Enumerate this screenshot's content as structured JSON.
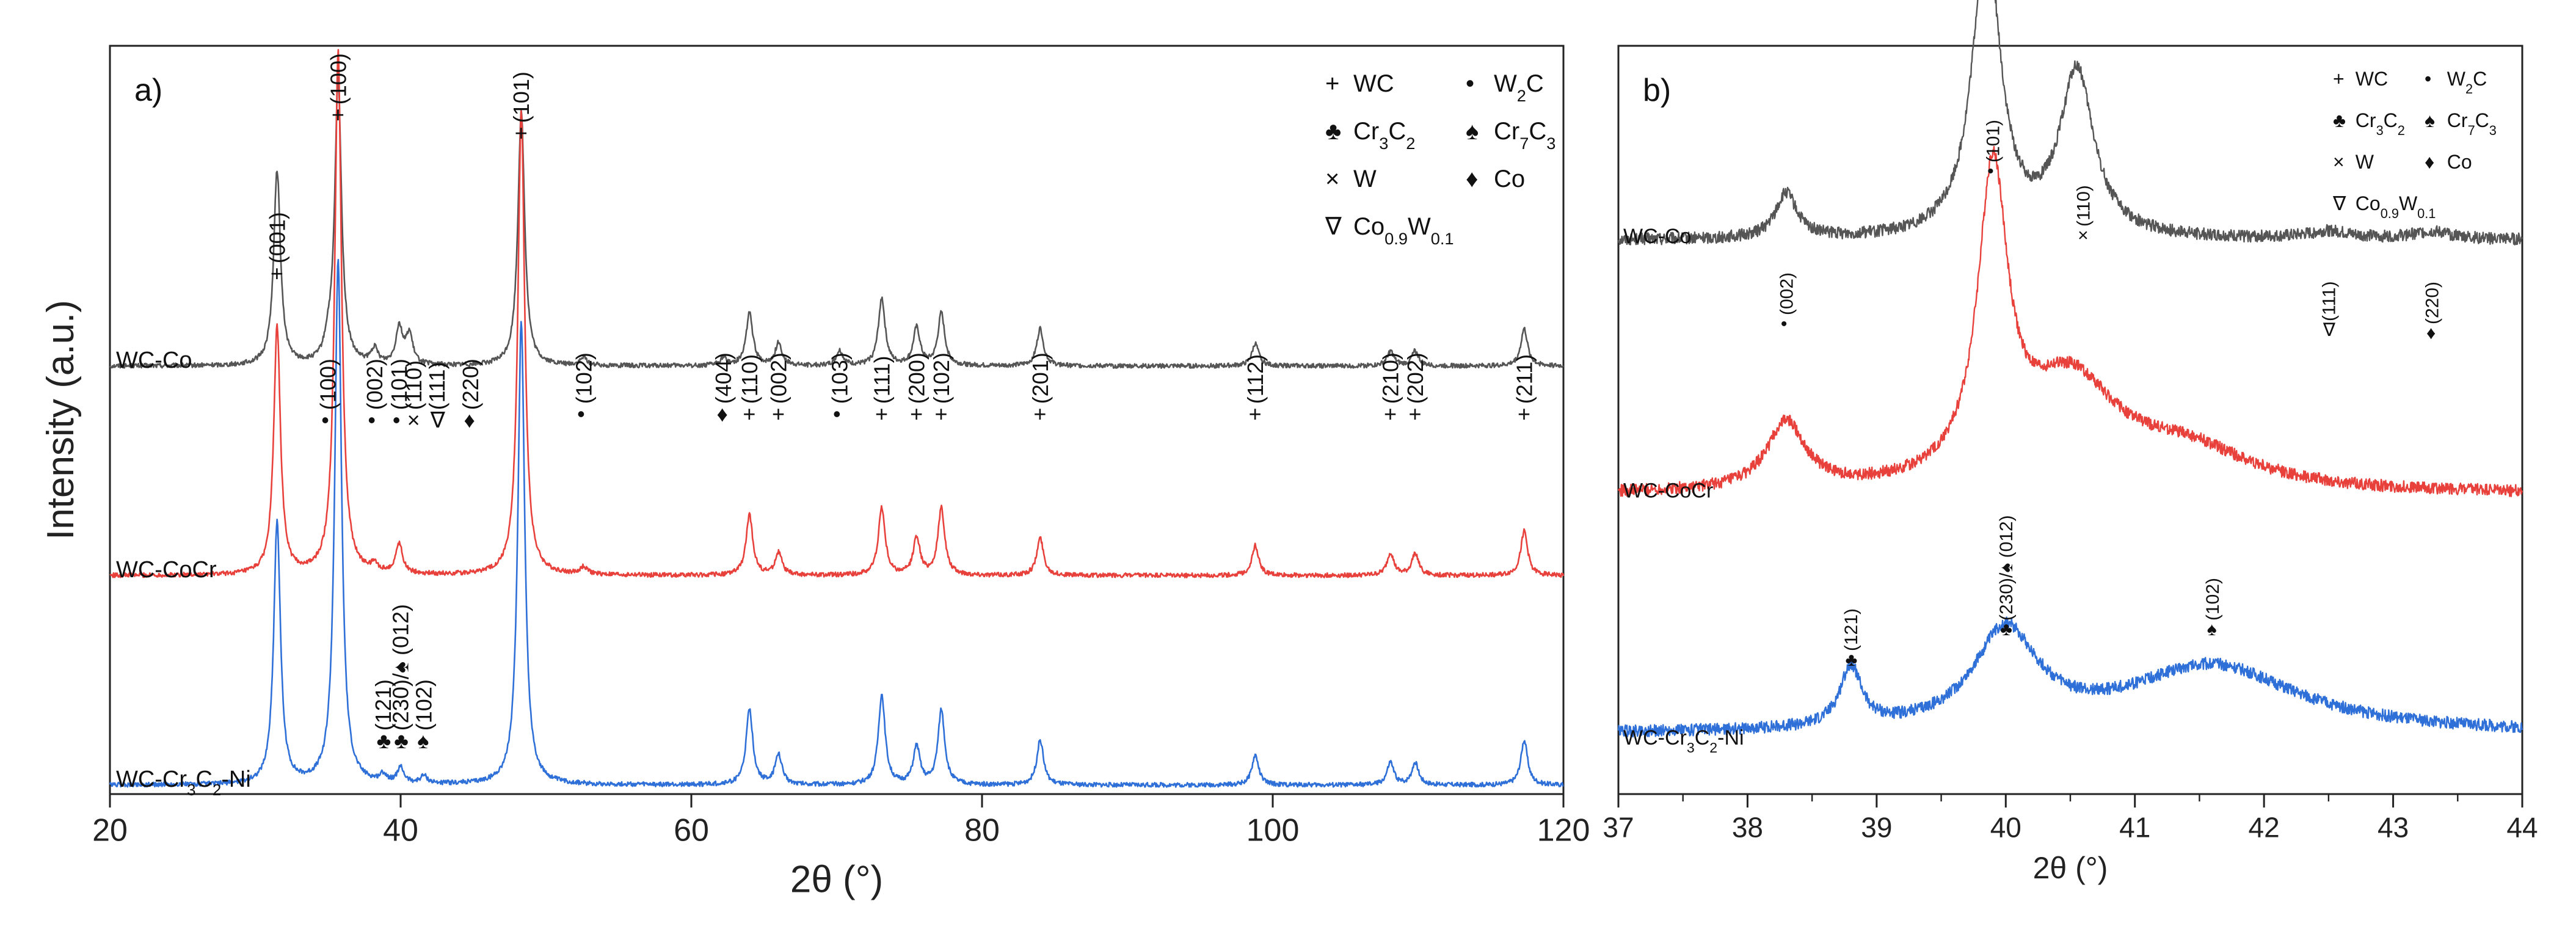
{
  "chart_data": [
    {
      "type": "line",
      "panel_label": "a)",
      "xlabel": "2θ (°)",
      "ylabel": "Intensity (a.u.)",
      "xlim": [
        20,
        120
      ],
      "xticks": [
        "20",
        "40",
        "60",
        "80",
        "100",
        "120"
      ],
      "series": [
        {
          "name": "WC-Co",
          "color": "#555555",
          "offset": 0.7,
          "peaks": [
            [
              31.5,
              0.26
            ],
            [
              35.0,
              0.02
            ],
            [
              35.7,
              0.38
            ],
            [
              38.2,
              0.02
            ],
            [
              39.9,
              0.05
            ],
            [
              40.6,
              0.04
            ],
            [
              48.3,
              0.34
            ],
            [
              52.6,
              0.01
            ],
            [
              62.2,
              0.01
            ],
            [
              64.0,
              0.07
            ],
            [
              66.0,
              0.03
            ],
            [
              70.2,
              0.02
            ],
            [
              73.1,
              0.09
            ],
            [
              75.5,
              0.05
            ],
            [
              77.2,
              0.07
            ],
            [
              84.0,
              0.05
            ],
            [
              98.8,
              0.03
            ],
            [
              108.1,
              0.02
            ],
            [
              109.8,
              0.02
            ],
            [
              117.3,
              0.05
            ]
          ]
        },
        {
          "name": "WC-CoCr",
          "color": "#e8413c",
          "offset": 0.35,
          "peaks": [
            [
              31.5,
              0.33
            ],
            [
              35.7,
              0.7
            ],
            [
              38.2,
              0.01
            ],
            [
              39.9,
              0.04
            ],
            [
              48.3,
              0.62
            ],
            [
              52.6,
              0.01
            ],
            [
              64.0,
              0.08
            ],
            [
              66.0,
              0.03
            ],
            [
              73.1,
              0.09
            ],
            [
              75.5,
              0.05
            ],
            [
              77.2,
              0.09
            ],
            [
              84.0,
              0.05
            ],
            [
              98.8,
              0.04
            ],
            [
              108.1,
              0.03
            ],
            [
              109.8,
              0.03
            ],
            [
              117.3,
              0.06
            ]
          ]
        },
        {
          "name": "WC-Cr3C2-Ni",
          "color": "#2e6fd8",
          "offset": 0.0,
          "peaks": [
            [
              31.5,
              0.35
            ],
            [
              35.7,
              0.7
            ],
            [
              38.8,
              0.01
            ],
            [
              40.0,
              0.02
            ],
            [
              41.6,
              0.01
            ],
            [
              48.3,
              0.62
            ],
            [
              64.0,
              0.1
            ],
            [
              66.0,
              0.04
            ],
            [
              73.1,
              0.12
            ],
            [
              75.5,
              0.05
            ],
            [
              77.2,
              0.1
            ],
            [
              84.0,
              0.06
            ],
            [
              98.8,
              0.04
            ],
            [
              108.1,
              0.03
            ],
            [
              109.8,
              0.03
            ],
            [
              117.3,
              0.06
            ]
          ]
        }
      ],
      "series_labels": [
        {
          "name": "WC-Co",
          "main": "WC-Co",
          "sub": ""
        },
        {
          "name": "WC-CoCr",
          "main": "WC-CoCr",
          "sub": ""
        },
        {
          "name": "WC-Cr3C2-Ni",
          "main": "WC-Cr",
          "sub": "3",
          "main2": "C",
          "sub2": "2",
          "tail": "-Ni"
        }
      ],
      "legend": [
        {
          "symbol": "+",
          "text": "WC",
          "sub": ""
        },
        {
          "symbol": "•",
          "text": "W",
          "sub": "2",
          "tail": "C"
        },
        {
          "symbol": "♣",
          "text": "Cr",
          "sub": "3",
          "tail": "C",
          "sub2": "2"
        },
        {
          "symbol": "♠",
          "text": "Cr",
          "sub": "7",
          "tail": "C",
          "sub2": "3"
        },
        {
          "symbol": "×",
          "text": "W",
          "sub": ""
        },
        {
          "symbol": "♦",
          "text": "Co",
          "sub": ""
        },
        {
          "symbol": "∇",
          "text": "Co",
          "sub": "0.9",
          "tail": "W",
          "sub2": "0.1"
        }
      ],
      "annotations_top": [
        {
          "x": 31.5,
          "sym": "+",
          "hkl": "(001)"
        },
        {
          "x": 35.0,
          "sym": "•",
          "hkl": "(100)"
        },
        {
          "x": 35.7,
          "sym": "+",
          "hkl": "(100)"
        },
        {
          "x": 38.2,
          "sym": "•",
          "hkl": "(002)"
        },
        {
          "x": 39.9,
          "sym": "•",
          "hkl": "(101)"
        },
        {
          "x": 40.9,
          "sym": "×",
          "hkl": "(110)"
        },
        {
          "x": 42.5,
          "sym": "∇",
          "hkl": "(111)"
        },
        {
          "x": 44.8,
          "sym": "♦",
          "hkl": "(220)"
        },
        {
          "x": 48.3,
          "sym": "+",
          "hkl": "(101)"
        },
        {
          "x": 52.6,
          "sym": "•",
          "hkl": "(102)"
        },
        {
          "x": 62.2,
          "sym": "♦",
          "hkl": "(404)"
        },
        {
          "x": 64.0,
          "sym": "+",
          "hkl": "(110)"
        },
        {
          "x": 66.0,
          "sym": "+",
          "hkl": "(002)"
        },
        {
          "x": 70.2,
          "sym": "•",
          "hkl": "(103)"
        },
        {
          "x": 73.1,
          "sym": "+",
          "hkl": "(111)"
        },
        {
          "x": 75.5,
          "sym": "+",
          "hkl": "(200)"
        },
        {
          "x": 77.2,
          "sym": "+",
          "hkl": "(102)"
        },
        {
          "x": 84.0,
          "sym": "+",
          "hkl": "(201)"
        },
        {
          "x": 98.8,
          "sym": "+",
          "hkl": "(112)"
        },
        {
          "x": 108.1,
          "sym": "+",
          "hkl": "(210)"
        },
        {
          "x": 109.8,
          "sym": "+",
          "hkl": "(202)"
        },
        {
          "x": 117.3,
          "sym": "+",
          "hkl": "(211)"
        }
      ],
      "annotations_bottom": [
        {
          "x": 38.8,
          "sym": "♣",
          "hkl": "(121)"
        },
        {
          "x": 40.0,
          "sym": "♣",
          "hkl": "(230)/♠ (012)"
        },
        {
          "x": 41.6,
          "sym": "♠",
          "hkl": "(102)"
        }
      ]
    },
    {
      "type": "line",
      "panel_label": "b)",
      "xlabel": "2θ (°)",
      "xlim": [
        37,
        44
      ],
      "xticks": [
        "37",
        "38",
        "39",
        "40",
        "41",
        "42",
        "43",
        "44"
      ],
      "series": [
        {
          "name": "WC-Co",
          "color": "#555555",
          "offset": 0.72,
          "baseline": 0.02,
          "peaks": [
            [
              38.3,
              0.06,
              0.1
            ],
            [
              39.85,
              0.4,
              0.13
            ],
            [
              40.55,
              0.22,
              0.16
            ],
            [
              42.5,
              0.01,
              0.2
            ],
            [
              43.3,
              0.01,
              0.2
            ]
          ]
        },
        {
          "name": "WC-CoCr",
          "color": "#e8413c",
          "offset": 0.38,
          "baseline": 0.02,
          "peaks": [
            [
              38.3,
              0.09,
              0.18
            ],
            [
              39.9,
              0.4,
              0.14
            ],
            [
              40.5,
              0.14,
              0.45
            ],
            [
              41.4,
              0.05,
              0.6
            ]
          ]
        },
        {
          "name": "WC-Cr3C2-Ni",
          "color": "#2e6fd8",
          "offset": 0.05,
          "baseline": 0.03,
          "peaks": [
            [
              38.8,
              0.08,
              0.1
            ],
            [
              40.0,
              0.13,
              0.3
            ],
            [
              41.6,
              0.09,
              0.8
            ]
          ]
        }
      ],
      "series_labels": [
        {
          "name": "WC-Co",
          "main": "WC-Co",
          "sub": ""
        },
        {
          "name": "WC-CoCr",
          "main": "WC-CoCr",
          "sub": ""
        },
        {
          "name": "WC-Cr3C2-Ni",
          "main": "WC-Cr",
          "sub": "3",
          "main2": "C",
          "sub2": "2",
          "tail": "-Ni"
        }
      ],
      "legend": [
        {
          "symbol": "+",
          "text": "WC",
          "sub": ""
        },
        {
          "symbol": "•",
          "text": "W",
          "sub": "2",
          "tail": "C"
        },
        {
          "symbol": "♣",
          "text": "Cr",
          "sub": "3",
          "tail": "C",
          "sub2": "2"
        },
        {
          "symbol": "♠",
          "text": "Cr",
          "sub": "7",
          "tail": "C",
          "sub2": "3"
        },
        {
          "symbol": "×",
          "text": "W",
          "sub": ""
        },
        {
          "symbol": "♦",
          "text": "Co",
          "sub": ""
        },
        {
          "symbol": "∇",
          "text": "Co",
          "sub": "0.9",
          "tail": "W",
          "sub2": "0.1"
        }
      ],
      "annotations_top": [
        {
          "x": 38.3,
          "sym": "•",
          "hkl": "(002)"
        },
        {
          "x": 39.9,
          "sym": "•",
          "hkl": "(101)"
        },
        {
          "x": 40.6,
          "sym": "×",
          "hkl": "(110)"
        },
        {
          "x": 42.5,
          "sym": "∇",
          "hkl": "(111)"
        },
        {
          "x": 43.3,
          "sym": "♦",
          "hkl": "(220)"
        }
      ],
      "annotations_bottom": [
        {
          "x": 38.8,
          "sym": "♣",
          "hkl": "(121)"
        },
        {
          "x": 40.0,
          "sym": "♣",
          "hkl": "(230)/♠ (012)"
        },
        {
          "x": 41.6,
          "sym": "♠",
          "hkl": "(102)"
        }
      ]
    }
  ]
}
